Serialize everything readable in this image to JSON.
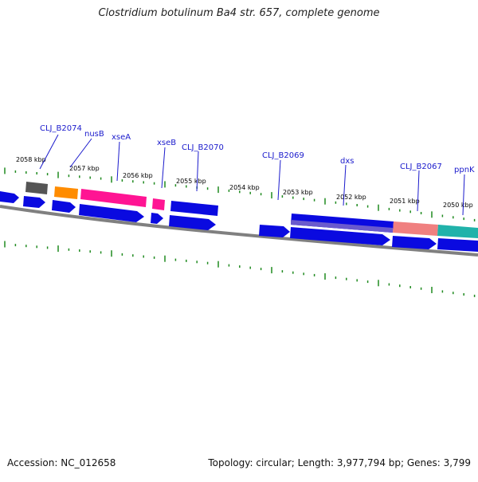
{
  "title": "Clostridium botulinum Ba4 str. 657, complete genome",
  "footer": {
    "accession": "Accession: NC_012658",
    "summary": "Topology: circular; Length: 3,977,794 bp; Genes: 3,799"
  },
  "colors": {
    "backbone": "#808080",
    "tick": "#1f8a1f",
    "gene_label": "#1a1acc",
    "cds_blue": "#0a0ae0",
    "orange": "#ff8c00",
    "magenta": "#ff1493",
    "gray": "#555555",
    "purple": "#6a5acd",
    "salmon": "#f08080",
    "teal": "#20b2aa"
  },
  "kbp_labels": [
    "2058 kbp",
    "2057 kbp",
    "2056 kbp",
    "2055 kbp",
    "2054 kbp",
    "2053 kbp",
    "2052 kbp",
    "2051 kbp",
    "2050 kbp"
  ],
  "gene_labels": [
    "CLJ_B2074",
    "nusB",
    "xseA",
    "xseB",
    "CLJ_B2070",
    "CLJ_B2069",
    "dxs",
    "CLJ_B2067",
    "ppnK"
  ]
}
